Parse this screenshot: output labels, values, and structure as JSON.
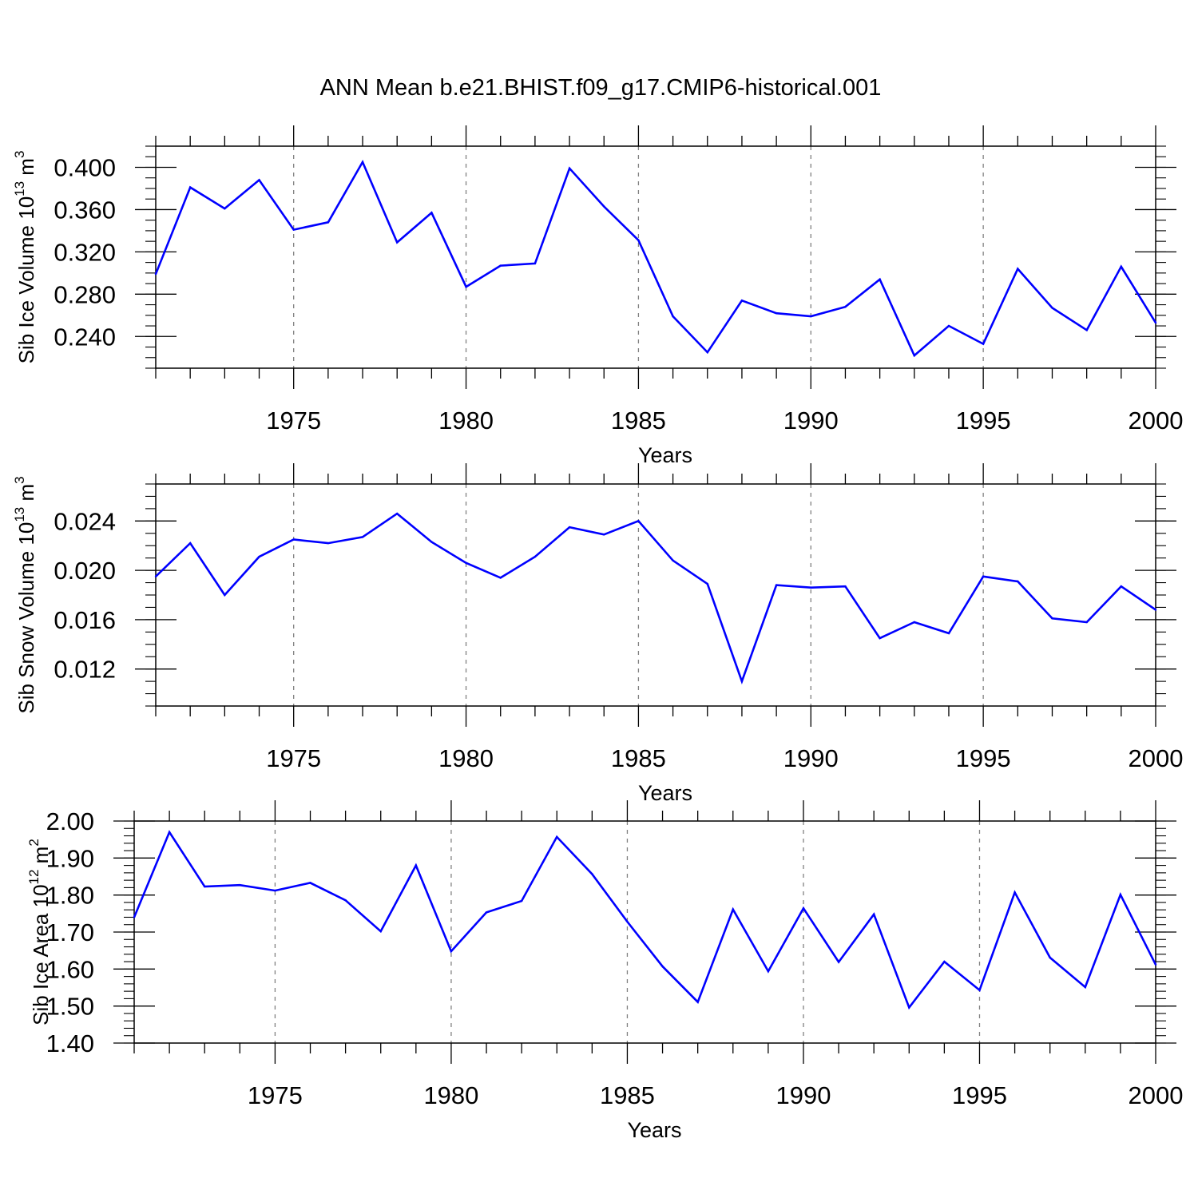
{
  "figure": {
    "title": "ANN Mean b.e21.BHIST.f09_g17.CMIP6-historical.001",
    "line_color": "#0000ff",
    "frame_color": "#000000",
    "grid_color": "#808080"
  },
  "chart_data": [
    {
      "type": "line",
      "title": "ANN Mean b.e21.BHIST.f09_g17.CMIP6-historical.001",
      "xlabel": "Years",
      "ylabel": {
        "text": "Sib Ice Volume 10",
        "sup": "13",
        "unit": " m",
        "unit_sup": "3"
      },
      "xlim": [
        1971,
        2000
      ],
      "ylim": [
        0.21,
        0.42
      ],
      "x_ticks": [
        1975,
        1980,
        1985,
        1990,
        1995,
        2000
      ],
      "x_tick_labels": [
        "1975",
        "1980",
        "1985",
        "1990",
        "1995",
        "2000"
      ],
      "y_ticks": [
        0.24,
        0.28,
        0.32,
        0.36,
        0.4
      ],
      "y_tick_labels": [
        "0.240",
        "0.280",
        "0.320",
        "0.360",
        "0.400"
      ],
      "y_minor_step": 0.01,
      "grid": "vertical dashed at major x ticks",
      "x": [
        1971,
        1972,
        1973,
        1974,
        1975,
        1976,
        1977,
        1978,
        1979,
        1980,
        1981,
        1982,
        1983,
        1984,
        1985,
        1986,
        1987,
        1988,
        1989,
        1990,
        1991,
        1992,
        1993,
        1994,
        1995,
        1996,
        1997,
        1998,
        1999,
        2000
      ],
      "series": [
        {
          "values": [
            0.299,
            0.381,
            0.361,
            0.388,
            0.341,
            0.348,
            0.405,
            0.329,
            0.357,
            0.287,
            0.307,
            0.309,
            0.399,
            0.363,
            0.331,
            0.259,
            0.225,
            0.274,
            0.262,
            0.259,
            0.268,
            0.294,
            0.222,
            0.25,
            0.233,
            0.304,
            0.267,
            0.246,
            0.306,
            0.253
          ]
        }
      ]
    },
    {
      "type": "line",
      "xlabel": "Years",
      "ylabel": {
        "text": "Sib Snow Volume 10",
        "sup": "13",
        "unit": " m",
        "unit_sup": "3"
      },
      "xlim": [
        1971,
        2000
      ],
      "ylim": [
        0.009,
        0.027
      ],
      "x_ticks": [
        1975,
        1980,
        1985,
        1990,
        1995,
        2000
      ],
      "x_tick_labels": [
        "1975",
        "1980",
        "1985",
        "1990",
        "1995",
        "2000"
      ],
      "y_ticks": [
        0.012,
        0.016,
        0.02,
        0.024
      ],
      "y_tick_labels": [
        "0.012",
        "0.016",
        "0.020",
        "0.024"
      ],
      "y_minor_step": 0.001,
      "grid": "vertical dashed at major x ticks",
      "x": [
        1971,
        1972,
        1973,
        1974,
        1975,
        1976,
        1977,
        1978,
        1979,
        1980,
        1981,
        1982,
        1983,
        1984,
        1985,
        1986,
        1987,
        1988,
        1989,
        1990,
        1991,
        1992,
        1993,
        1994,
        1995,
        1996,
        1997,
        1998,
        1999,
        2000
      ],
      "series": [
        {
          "values": [
            0.0195,
            0.0222,
            0.018,
            0.0211,
            0.0225,
            0.0222,
            0.0227,
            0.0246,
            0.0223,
            0.0206,
            0.0194,
            0.0211,
            0.0235,
            0.0229,
            0.024,
            0.0208,
            0.0189,
            0.011,
            0.0188,
            0.0186,
            0.0187,
            0.0145,
            0.0158,
            0.0149,
            0.0195,
            0.0191,
            0.0161,
            0.0158,
            0.0187,
            0.0168
          ]
        }
      ]
    },
    {
      "type": "line",
      "xlabel": "Years",
      "ylabel": {
        "text": "Sib Ice Area 10",
        "sup": "12",
        "unit": " m",
        "unit_sup": "2"
      },
      "xlim": [
        1971,
        2000
      ],
      "ylim": [
        1.4,
        2.0
      ],
      "x_ticks": [
        1975,
        1980,
        1985,
        1990,
        1995,
        2000
      ],
      "x_tick_labels": [
        "1975",
        "1980",
        "1985",
        "1990",
        "1995",
        "2000"
      ],
      "y_ticks": [
        1.4,
        1.5,
        1.6,
        1.7,
        1.8,
        1.9,
        2.0
      ],
      "y_tick_labels": [
        "1.40",
        "1.50",
        "1.60",
        "1.70",
        "1.80",
        "1.90",
        "2.00"
      ],
      "y_minor_step": 0.02,
      "grid": "vertical dashed at major x ticks",
      "x": [
        1971,
        1972,
        1973,
        1974,
        1975,
        1976,
        1977,
        1978,
        1979,
        1980,
        1981,
        1982,
        1983,
        1984,
        1985,
        1986,
        1987,
        1988,
        1989,
        1990,
        1991,
        1992,
        1993,
        1994,
        1995,
        1996,
        1997,
        1998,
        1999,
        2000
      ],
      "series": [
        {
          "values": [
            1.74,
            1.97,
            1.823,
            1.827,
            1.812,
            1.833,
            1.786,
            1.702,
            1.88,
            1.648,
            1.753,
            1.784,
            1.957,
            1.857,
            1.728,
            1.607,
            1.511,
            1.761,
            1.594,
            1.764,
            1.619,
            1.748,
            1.496,
            1.62,
            1.543,
            1.807,
            1.631,
            1.551,
            1.801,
            1.612
          ]
        }
      ]
    }
  ]
}
